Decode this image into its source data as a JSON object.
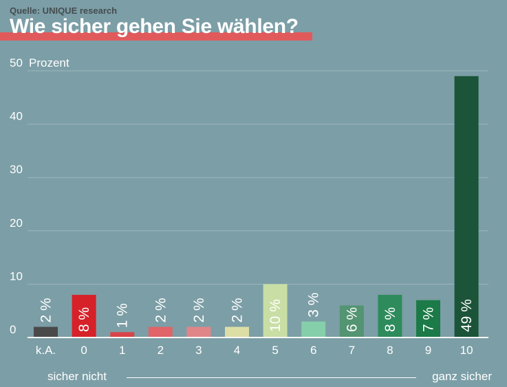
{
  "header": {
    "source": "Quelle: UNIQUE research",
    "title": "Wie sicher gehen Sie wählen?"
  },
  "scale": {
    "left_label": "sicher nicht",
    "right_label": "ganz sicher"
  },
  "chart_data": {
    "type": "bar",
    "title": "Wie sicher gehen Sie wählen?",
    "ylabel": "Prozent",
    "xlabel": "",
    "ylim": [
      0,
      50
    ],
    "yticks": [
      0,
      10,
      20,
      30,
      40,
      50
    ],
    "grid": true,
    "categories": [
      "k.A.",
      "0",
      "1",
      "2",
      "3",
      "4",
      "5",
      "6",
      "7",
      "8",
      "9",
      "10"
    ],
    "values": [
      2,
      8,
      1,
      2,
      2,
      2,
      10,
      3,
      6,
      8,
      7,
      49
    ],
    "value_labels": [
      "2 %",
      "8 %",
      "1 %",
      "2 %",
      "2 %",
      "2 %",
      "10 %",
      "3 %",
      "6 %",
      "8 %",
      "7 %",
      "49 %"
    ],
    "colors": [
      "#4a4a4a",
      "#d62129",
      "#d9444a",
      "#e06468",
      "#e08688",
      "#dcdea6",
      "#c9dea4",
      "#85cfaa",
      "#539472",
      "#2e8b5c",
      "#1b7a47",
      "#1b5438"
    ]
  }
}
